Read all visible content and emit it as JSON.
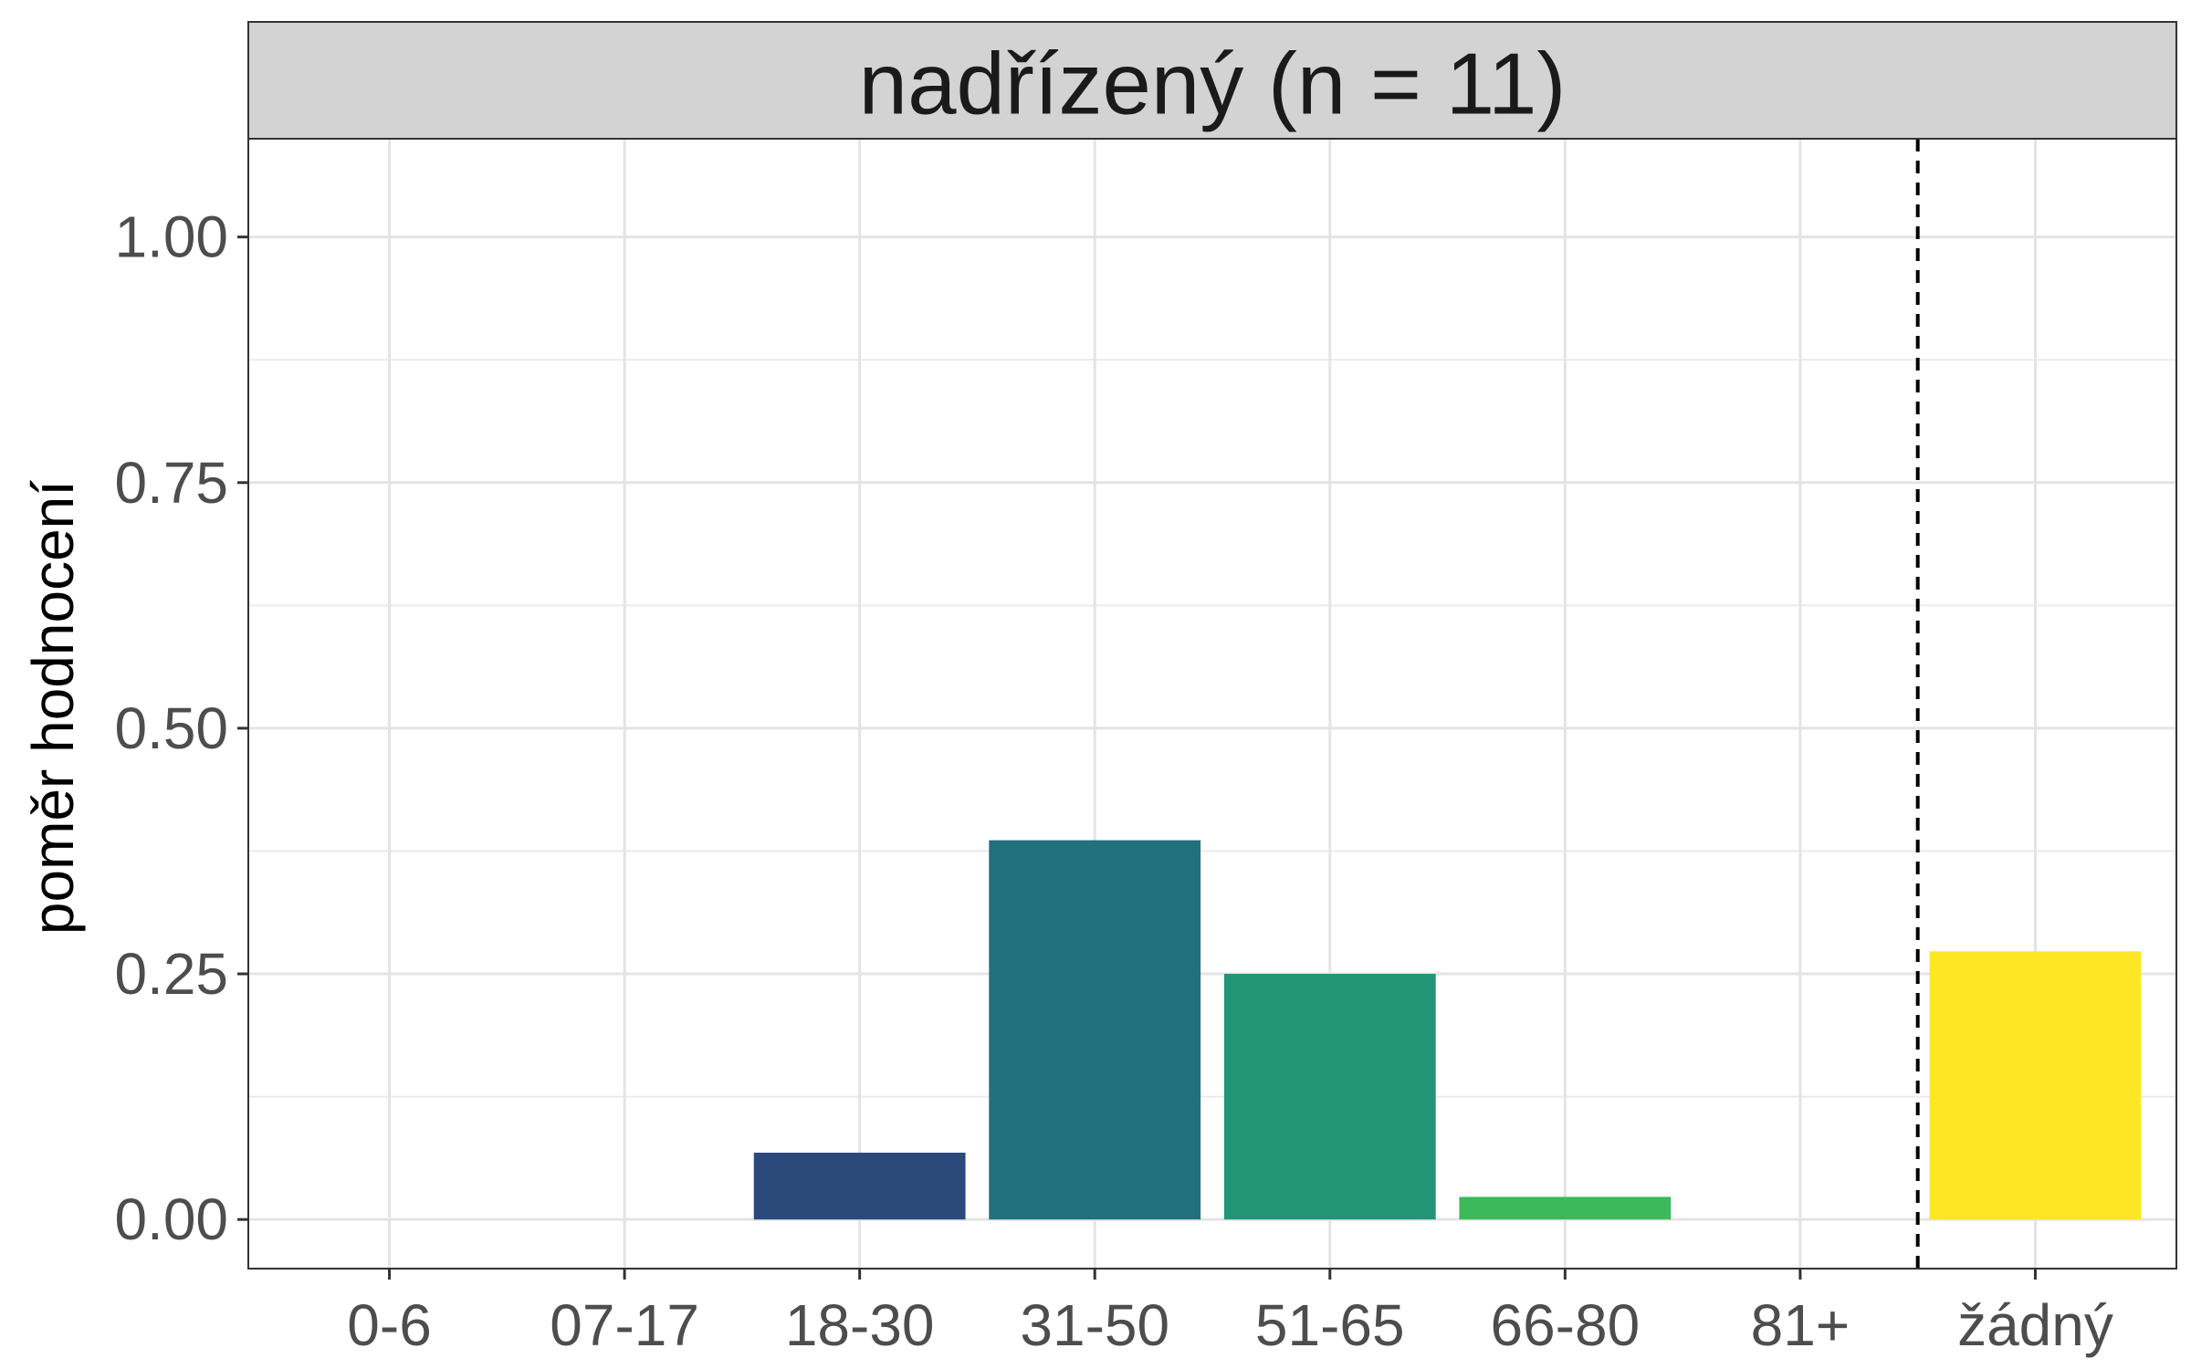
{
  "chart_data": {
    "type": "bar",
    "panel_title": "nadřízený (n = 11)",
    "xlabel": "",
    "ylabel": "poměr hodnocení",
    "categories": [
      "0-6",
      "07-17",
      "18-30",
      "31-50",
      "51-65",
      "66-80",
      "81+",
      "žádný"
    ],
    "values": [
      0,
      0,
      0.068,
      0.386,
      0.25,
      0.023,
      0,
      0.273
    ],
    "colors": [
      "#440154",
      "#46337E",
      "#2A4A7B",
      "#21707C",
      "#229576",
      "#3CB95A",
      "#8FD744",
      "#FDE725"
    ],
    "ylim": [
      -0.05,
      1.1
    ],
    "yticks": [
      "0.00",
      "0.25",
      "0.50",
      "0.75",
      "1.00"
    ],
    "ytick_values": [
      0,
      0.25,
      0.5,
      0.75,
      1.0
    ],
    "reference_line": {
      "style": "dashed",
      "color": "#000000",
      "between_categories": [
        "81+",
        "žádný"
      ]
    },
    "grid": true,
    "legend": "none"
  }
}
